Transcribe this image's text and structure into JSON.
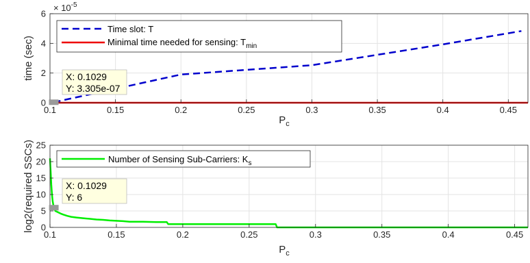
{
  "chart_data": [
    {
      "type": "line",
      "xlabel": "P",
      "xlabel_sub": "c",
      "ylabel": "time (sec)",
      "y_exponent_base": "× 10",
      "y_exponent_power": "-5",
      "xlim": [
        0.1,
        0.465
      ],
      "ylim": [
        0,
        6
      ],
      "xticks": [
        0.1,
        0.15,
        0.2,
        0.25,
        0.3,
        0.35,
        0.4,
        0.45
      ],
      "xtick_labels": [
        "0.1",
        "0.15",
        "0.2",
        "0.25",
        "0.3",
        "0.35",
        "0.4",
        "0.45"
      ],
      "yticks": [
        0,
        2,
        4,
        6
      ],
      "ytick_labels": [
        "0",
        "2",
        "4",
        "6"
      ],
      "grid": true,
      "legend_position": "top-left",
      "series": [
        {
          "name": "Time slot: T",
          "color": "#0000cc",
          "style": "dashed",
          "x": [
            0.1029,
            0.2,
            0.3,
            0.4,
            0.46
          ],
          "y": [
            0.033,
            1.9,
            2.53,
            3.93,
            4.83
          ]
        },
        {
          "name": "Minimal time needed for sensing: T",
          "name_sub": "min",
          "color": "#ee0000",
          "style": "solid",
          "x": [
            0.1,
            0.465
          ],
          "y": [
            0.0,
            0.0
          ]
        }
      ],
      "datatip": {
        "x_label": "X: 0.1029",
        "y_label": "Y: 3.305e-07",
        "x": 0.1029,
        "y": 0.033
      }
    },
    {
      "type": "line",
      "xlabel": "P",
      "xlabel_sub": "c",
      "ylabel": "log2(required SSCs)",
      "xlim": [
        0.1,
        0.46
      ],
      "ylim": [
        0,
        25
      ],
      "xticks": [
        0.1,
        0.15,
        0.2,
        0.25,
        0.3,
        0.35,
        0.4,
        0.45
      ],
      "xtick_labels": [
        "0.1",
        "0.15",
        "0.2",
        "0.25",
        "0.3",
        "0.35",
        "0.4",
        "0.45"
      ],
      "yticks": [
        0,
        5,
        10,
        15,
        20,
        25
      ],
      "ytick_labels": [
        "0",
        "5",
        "10",
        "15",
        "20",
        "25"
      ],
      "grid": true,
      "legend_position": "top-left",
      "series": [
        {
          "name": "Number of Sensing Sub-Carriers: K",
          "name_sub": "s",
          "color": "#00ee00",
          "style": "solid",
          "x": [
            0.1,
            0.1005,
            0.101,
            0.1015,
            0.102,
            0.1029,
            0.104,
            0.106,
            0.108,
            0.11,
            0.113,
            0.116,
            0.12,
            0.125,
            0.13,
            0.135,
            0.14,
            0.145,
            0.15,
            0.155,
            0.16,
            0.17,
            0.18,
            0.188,
            0.189,
            0.2,
            0.22,
            0.24,
            0.26,
            0.27,
            0.271,
            0.3,
            0.35,
            0.4,
            0.46
          ],
          "y": [
            21,
            17,
            13,
            10,
            8,
            6,
            5,
            4.6,
            4.2,
            3.9,
            3.5,
            3.2,
            3.0,
            2.8,
            2.6,
            2.4,
            2.3,
            2.1,
            2.0,
            1.9,
            1.7,
            1.7,
            1.6,
            1.6,
            1.0,
            1.0,
            1.0,
            1.0,
            1.0,
            1.0,
            0.0,
            0.0,
            0.0,
            0.0,
            0.0
          ]
        }
      ],
      "datatip": {
        "x_label": "X: 0.1029",
        "y_label": "Y: 6",
        "x": 0.1029,
        "y": 6
      }
    }
  ]
}
